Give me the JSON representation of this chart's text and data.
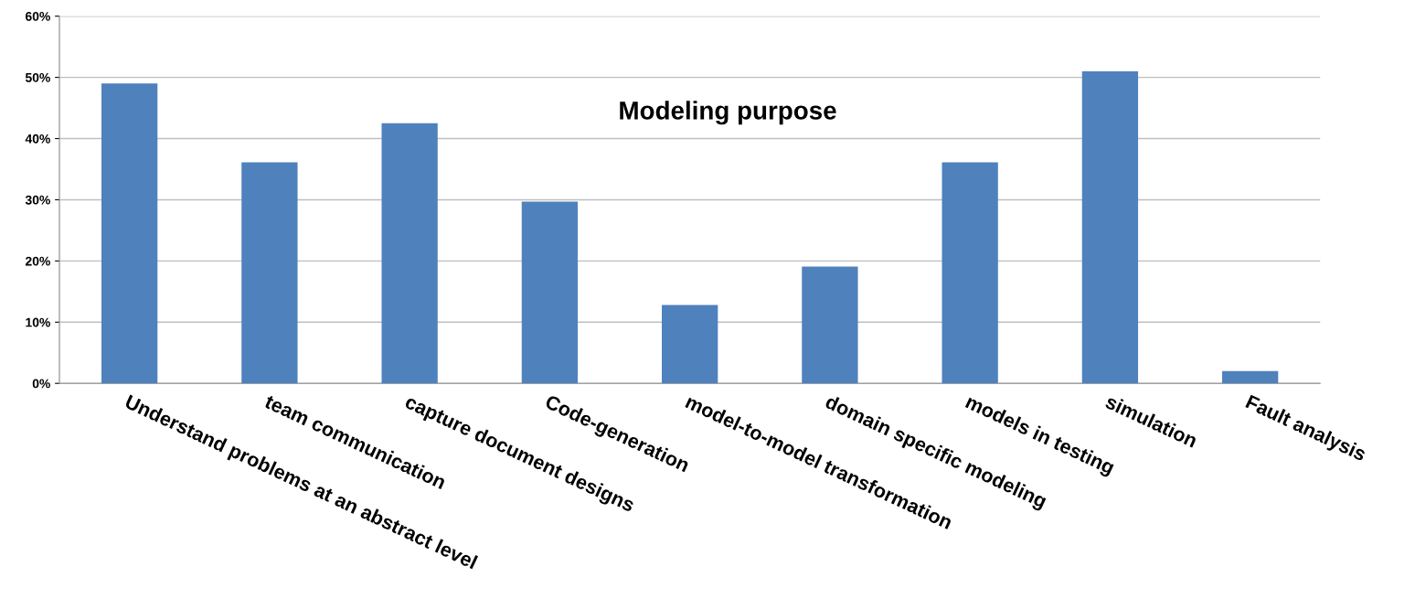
{
  "chart_data": {
    "type": "bar",
    "title": "Modeling purpose",
    "categories": [
      "Understand problems at an abstract level",
      "team communication",
      "capture document designs",
      "Code-generation",
      "model-to-model transformation",
      "domain specific modeling",
      "models in testing",
      "simulation",
      "Fault analysis"
    ],
    "values": [
      49.0,
      36.1,
      42.5,
      29.7,
      12.8,
      19.1,
      36.1,
      51.0,
      2.0
    ],
    "color": "#4f81bd",
    "ylim": [
      0,
      60
    ],
    "yticks": [
      {
        "value": 0,
        "label": "0%"
      },
      {
        "value": 10,
        "label": "10%"
      },
      {
        "value": 20,
        "label": "20%"
      },
      {
        "value": 30,
        "label": "30%"
      },
      {
        "value": 40,
        "label": "40%"
      },
      {
        "value": 50,
        "label": "50%"
      },
      {
        "value": 60,
        "label": "60%"
      }
    ],
    "grid": "y"
  }
}
